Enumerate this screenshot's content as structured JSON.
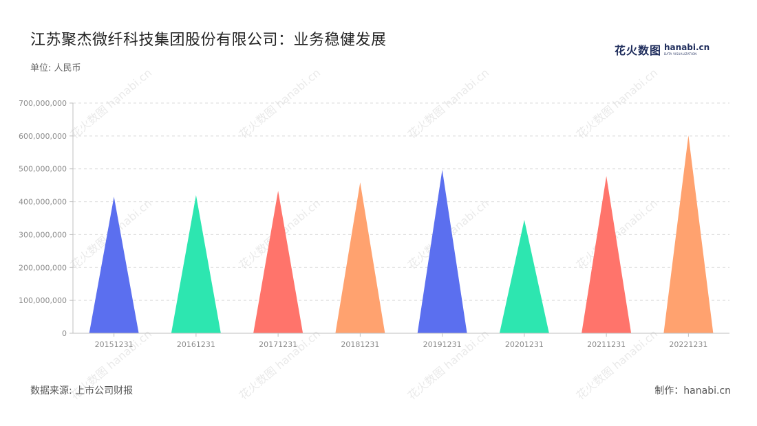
{
  "title": "江苏聚杰微纤科技集团股份有限公司：业务稳健发展",
  "unit_label": "单位: 人民币",
  "source_label": "数据来源: 上市公司财报",
  "maker_label": "制作：hanabi.cn",
  "logo": {
    "zh": "花火数图",
    "en": "hanabi.cn",
    "en_sub": "DATA VISUALIZATION"
  },
  "watermark_text": "花火数图 hanabi.cn",
  "chart_data": {
    "type": "bar",
    "bar_shape": "triangle",
    "categories": [
      "20151231",
      "20161231",
      "20171231",
      "20181231",
      "20191231",
      "20201231",
      "20211231",
      "20221231"
    ],
    "values": [
      415000000,
      420000000,
      433000000,
      459000000,
      497000000,
      345000000,
      478000000,
      602000000
    ],
    "colors": [
      "#5b6fef",
      "#2de6b0",
      "#ff746b",
      "#ffa26f",
      "#5b6fef",
      "#2de6b0",
      "#ff746b",
      "#ffa26f"
    ],
    "ylim": [
      0,
      700000000
    ],
    "yticks": [
      "0",
      "100,000,000",
      "200,000,000",
      "300,000,000",
      "400,000,000",
      "500,000,000",
      "600,000,000",
      "700,000,000"
    ],
    "ytick_values": [
      0,
      100000000,
      200000000,
      300000000,
      400000000,
      500000000,
      600000000,
      700000000
    ],
    "grid": true,
    "legend": "none"
  }
}
